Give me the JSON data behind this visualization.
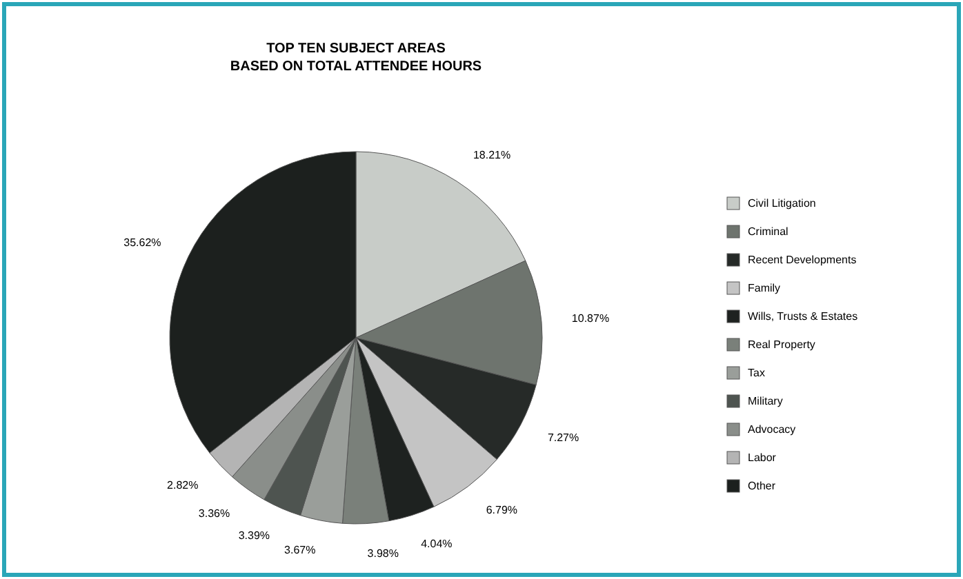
{
  "chart_data": {
    "type": "pie",
    "title": "TOP TEN SUBJECT AREAS\nBASED ON TOTAL ATTENDEE HOURS",
    "categories": [
      "Civil Litigation",
      "Criminal",
      "Recent Developments",
      "Family",
      "Wills, Trusts & Estates",
      "Real Property",
      "Tax",
      "Military",
      "Advocacy",
      "Labor",
      "Other"
    ],
    "values": [
      18.21,
      10.87,
      7.27,
      6.79,
      4.04,
      3.98,
      3.67,
      3.39,
      3.36,
      2.82,
      35.62
    ],
    "value_labels": [
      "18.21%",
      "10.87%",
      "7.27%",
      "6.79%",
      "4.04%",
      "3.98%",
      "3.67%",
      "3.39%",
      "3.36%",
      "2.82%",
      "35.62%"
    ],
    "colors": [
      "#c8ccc8",
      "#6e746e",
      "#262a28",
      "#c4c4c4",
      "#1e2220",
      "#7a807a",
      "#9a9e9a",
      "#4e5450",
      "#8a8e8a",
      "#b4b4b4",
      "#1c201e"
    ],
    "legend": "right"
  }
}
